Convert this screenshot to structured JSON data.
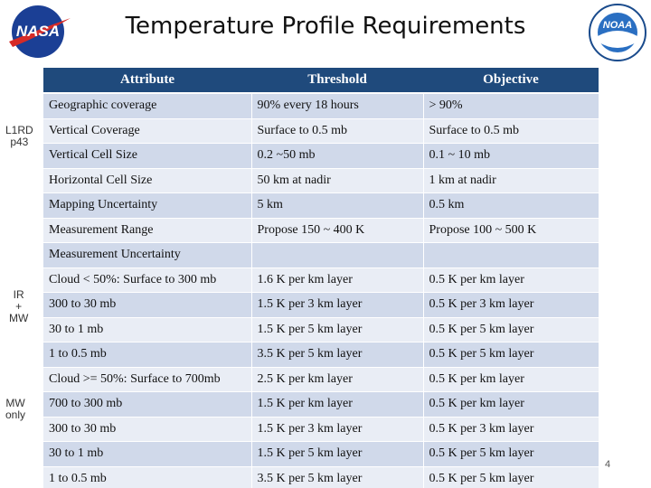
{
  "header": {
    "title": "Temperature Profile Requirements",
    "logo_left": "NASA",
    "logo_right": "NOAA"
  },
  "table": {
    "columns": [
      "Attribute",
      "Threshold",
      "Objective"
    ],
    "rows": [
      [
        "Geographic coverage",
        "90% every 18 hours",
        "> 90%"
      ],
      [
        "Vertical Coverage",
        "Surface to 0.5 mb",
        "Surface to 0.5 mb"
      ],
      [
        "Vertical Cell Size",
        "0.2 ~50 mb",
        "0.1 ~ 10 mb"
      ],
      [
        "Horizontal Cell Size",
        "50 km at nadir",
        "1 km at nadir"
      ],
      [
        "Mapping Uncertainty",
        "5 km",
        "0.5 km"
      ],
      [
        "Measurement Range",
        "Propose 150 ~ 400 K",
        "Propose 100 ~ 500 K"
      ],
      [
        "Measurement Uncertainty"
      ],
      [
        "Cloud < 50%: Surface to 300 mb",
        "1.6 K per km layer",
        "0.5 K per km layer"
      ],
      [
        "300 to 30 mb",
        "1.5 K per 3 km layer",
        "0.5 K per 3 km layer"
      ],
      [
        "30 to 1 mb",
        "1.5 K per 5 km layer",
        "0.5 K per 5 km layer"
      ],
      [
        "1 to 0.5 mb",
        "3.5 K per 5 km layer",
        "0.5 K per 5 km layer"
      ],
      [
        "Cloud >= 50%: Surface to 700mb",
        "2.5 K per km layer",
        "0.5 K per km layer"
      ],
      [
        "700 to 300 mb",
        "1.5 K per km layer",
        "0.5 K per km layer"
      ],
      [
        "300 to 30 mb",
        "1.5 K per 3 km layer",
        "0.5 K per 3 km layer"
      ],
      [
        "30 to 1 mb",
        "1.5 K per 5 km layer",
        "0.5 K per 5 km layer"
      ],
      [
        "1 to 0.5 mb",
        "3.5 K per 5 km layer",
        "0.5 K per 5 km layer"
      ]
    ]
  },
  "side_labels": [
    {
      "lines": [
        "L1RD",
        "p43"
      ]
    },
    {
      "lines": [
        "IR",
        "+",
        "MW"
      ]
    },
    {
      "lines": [
        "MW",
        "only"
      ]
    }
  ],
  "page_number": "4"
}
